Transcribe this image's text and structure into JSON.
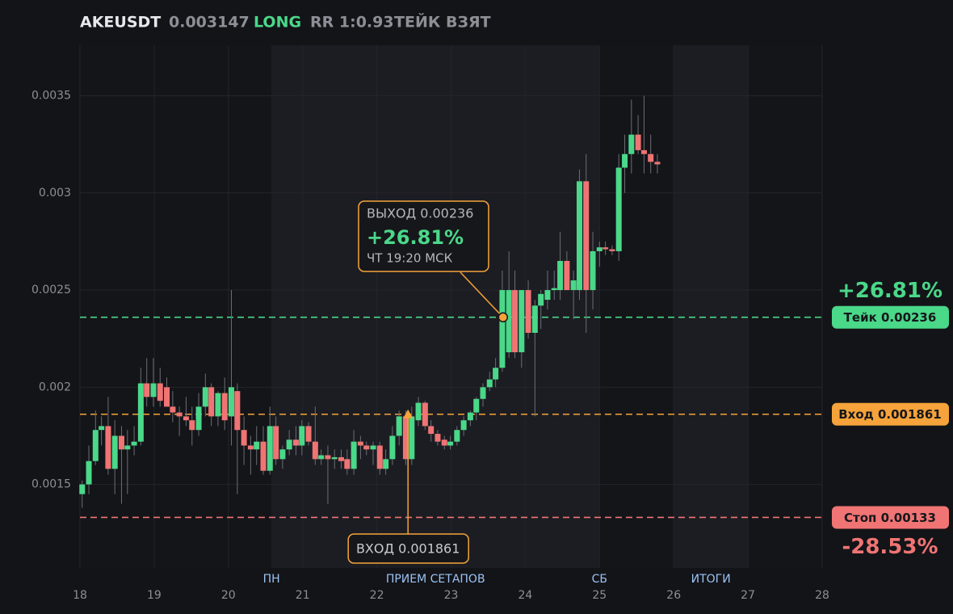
{
  "chart_data": {
    "type": "candlestick",
    "header": {
      "symbol": "AKEUSDT",
      "price": "0.003147",
      "side": "LONG",
      "rr": "RR 1:0.93",
      "status": "ТЕЙК ВЗЯТ"
    },
    "xlim": [
      18,
      28
    ],
    "xticks": [
      18,
      19,
      20,
      21,
      22,
      23,
      24,
      25,
      26,
      27,
      28
    ],
    "ylim": [
      0.00107,
      0.00376
    ],
    "yticks": [
      0.0015,
      0.002,
      0.0025,
      0.003,
      0.0035
    ],
    "grid": true,
    "up_color": "#4ad889",
    "down_color": "#f07474",
    "x": [
      18.03,
      18.12,
      18.21,
      18.29,
      18.38,
      18.47,
      18.56,
      18.64,
      18.73,
      18.82,
      18.9,
      18.99,
      19.08,
      19.17,
      19.25,
      19.34,
      19.43,
      19.51,
      19.6,
      19.69,
      19.77,
      19.86,
      19.95,
      20.04,
      20.12,
      20.21,
      20.3,
      20.38,
      20.47,
      20.56,
      20.64,
      20.73,
      20.82,
      20.91,
      20.99,
      21.08,
      21.17,
      21.25,
      21.34,
      21.43,
      21.52,
      21.6,
      21.69,
      21.78,
      21.86,
      21.95,
      22.04,
      22.12,
      22.21,
      22.3,
      22.39,
      22.47,
      22.56,
      22.65,
      22.73,
      22.82,
      22.91,
      22.99,
      23.08,
      23.17,
      23.26,
      23.34,
      23.43,
      23.52,
      23.6,
      23.69,
      23.78,
      23.86,
      23.95,
      24.04,
      24.13,
      24.21,
      24.3,
      24.39,
      24.47,
      24.56,
      24.65,
      24.73,
      24.82,
      24.91,
      25.0,
      25.08,
      25.17,
      25.26,
      25.34,
      25.43,
      25.52,
      25.6,
      25.69,
      25.78
    ],
    "open": [
      0.00145,
      0.0015,
      0.00162,
      0.00178,
      0.0018,
      0.00158,
      0.00175,
      0.00168,
      0.0017,
      0.00172,
      0.00202,
      0.00195,
      0.00202,
      0.002,
      0.0019,
      0.00187,
      0.00185,
      0.00183,
      0.00178,
      0.0019,
      0.002,
      0.00185,
      0.00197,
      0.00185,
      0.00198,
      0.00178,
      0.0017,
      0.00168,
      0.00172,
      0.00157,
      0.0018,
      0.00163,
      0.00168,
      0.00173,
      0.0017,
      0.0018,
      0.00172,
      0.00163,
      0.00165,
      0.00163,
      0.00164,
      0.00163,
      0.00158,
      0.00172,
      0.0017,
      0.00168,
      0.0017,
      0.00158,
      0.00163,
      0.00175,
      0.00185,
      0.00163,
      0.00183,
      0.00192,
      0.0018,
      0.00176,
      0.00173,
      0.0017,
      0.00172,
      0.00178,
      0.00183,
      0.00187,
      0.00194,
      0.002,
      0.00204,
      0.0021,
      0.00218,
      0.0025,
      0.00218,
      0.0025,
      0.00228,
      0.00242,
      0.00245,
      0.0025,
      0.0025,
      0.00265,
      0.0025,
      0.0025,
      0.00306,
      0.0025,
      0.0027,
      0.00272,
      0.00271,
      0.0027,
      0.00313,
      0.0032,
      0.0033,
      0.00322,
      0.0032,
      0.00316
    ],
    "high": [
      0.00152,
      0.0017,
      0.00188,
      0.00185,
      0.00195,
      0.00183,
      0.0018,
      0.00178,
      0.0018,
      0.0021,
      0.00215,
      0.00215,
      0.0021,
      0.00205,
      0.00198,
      0.0019,
      0.00195,
      0.0019,
      0.00197,
      0.00207,
      0.00202,
      0.00198,
      0.00205,
      0.0025,
      0.00202,
      0.00185,
      0.00175,
      0.0018,
      0.0018,
      0.0019,
      0.00185,
      0.0017,
      0.00178,
      0.0018,
      0.00183,
      0.00182,
      0.0019,
      0.00168,
      0.0017,
      0.00168,
      0.00168,
      0.00168,
      0.00178,
      0.00175,
      0.00172,
      0.00172,
      0.00172,
      0.00168,
      0.0018,
      0.00188,
      0.00188,
      0.0019,
      0.00195,
      0.00193,
      0.00183,
      0.00178,
      0.00175,
      0.00175,
      0.0018,
      0.00185,
      0.00188,
      0.00195,
      0.00202,
      0.00208,
      0.00215,
      0.0026,
      0.0027,
      0.0026,
      0.0025,
      0.00255,
      0.00245,
      0.0025,
      0.0026,
      0.0026,
      0.0028,
      0.0027,
      0.0026,
      0.00312,
      0.0032,
      0.0028,
      0.00275,
      0.00275,
      0.00273,
      0.0032,
      0.0033,
      0.00348,
      0.0034,
      0.0035,
      0.0033,
      0.0032
    ],
    "low": [
      0.00138,
      0.00145,
      0.0016,
      0.0017,
      0.00155,
      0.00145,
      0.0014,
      0.00145,
      0.00165,
      0.0017,
      0.0019,
      0.0019,
      0.0019,
      0.0019,
      0.00182,
      0.00175,
      0.0018,
      0.0017,
      0.00175,
      0.00185,
      0.0018,
      0.0018,
      0.00178,
      0.0017,
      0.00145,
      0.0016,
      0.00155,
      0.0016,
      0.00155,
      0.00155,
      0.0016,
      0.00158,
      0.00165,
      0.00165,
      0.00165,
      0.0017,
      0.0016,
      0.0016,
      0.0014,
      0.00158,
      0.00158,
      0.00155,
      0.00155,
      0.00163,
      0.00165,
      0.0016,
      0.00155,
      0.00155,
      0.0016,
      0.0017,
      0.0016,
      0.0016,
      0.0018,
      0.00178,
      0.00172,
      0.0017,
      0.00168,
      0.00168,
      0.0017,
      0.00175,
      0.0018,
      0.00183,
      0.0019,
      0.00198,
      0.002,
      0.00208,
      0.00215,
      0.00215,
      0.0021,
      0.00225,
      0.00185,
      0.0023,
      0.0024,
      0.00245,
      0.00245,
      0.0025,
      0.00235,
      0.00245,
      0.00228,
      0.0024,
      0.00262,
      0.00268,
      0.00268,
      0.00265,
      0.003,
      0.0031,
      0.0032,
      0.0031,
      0.0031,
      0.0031
    ],
    "close": [
      0.0015,
      0.00162,
      0.00178,
      0.0018,
      0.00158,
      0.00175,
      0.00168,
      0.0017,
      0.00172,
      0.00202,
      0.00195,
      0.00202,
      0.00193,
      0.0019,
      0.00187,
      0.00185,
      0.00183,
      0.00178,
      0.0019,
      0.002,
      0.00185,
      0.00197,
      0.00183,
      0.002,
      0.00178,
      0.0017,
      0.00168,
      0.00172,
      0.00157,
      0.0018,
      0.00163,
      0.00168,
      0.00173,
      0.0017,
      0.0018,
      0.00172,
      0.00163,
      0.00165,
      0.00163,
      0.00164,
      0.00162,
      0.00158,
      0.00172,
      0.0017,
      0.00168,
      0.0017,
      0.00158,
      0.00163,
      0.00175,
      0.00185,
      0.00163,
      0.00185,
      0.00192,
      0.0018,
      0.00176,
      0.00172,
      0.0017,
      0.00172,
      0.00178,
      0.00183,
      0.00187,
      0.00194,
      0.002,
      0.00204,
      0.0021,
      0.0025,
      0.0025,
      0.00218,
      0.0025,
      0.00228,
      0.00242,
      0.00248,
      0.0025,
      0.00251,
      0.00265,
      0.0025,
      0.00255,
      0.00306,
      0.0025,
      0.0027,
      0.00272,
      0.00271,
      0.0027,
      0.00313,
      0.0032,
      0.0033,
      0.00322,
      0.0032,
      0.00316,
      0.003147
    ],
    "zones": [
      {
        "start": 20.58,
        "end": 25
      },
      {
        "start": 26,
        "end": 27
      }
    ],
    "zone_labels": [
      {
        "text": "ПН",
        "x": 20.58
      },
      {
        "text": "ПРИЕМ СЕТАПОВ",
        "x": 22.79
      },
      {
        "text": "СБ",
        "x": 25
      },
      {
        "text": "ИТОГИ",
        "x": 26.5
      }
    ],
    "levels": [
      {
        "value": 0.00236,
        "label": "Тейк 0.00236",
        "color": "#4ad889",
        "pnl": "+26.81%"
      },
      {
        "value": 0.001861,
        "label": "Вход 0.001861",
        "color": "#f5a33a"
      },
      {
        "value": 0.00133,
        "label": "Стоп 0.00133",
        "color": "#f07474",
        "pnl": "-28.53%"
      }
    ],
    "exit": {
      "x": 23.7,
      "y": 0.00236,
      "lines": [
        "ВЫХОД 0.00236",
        "+26.81%",
        "ЧТ 19:20 МСК"
      ]
    },
    "entry": {
      "x": 22.42,
      "y": 0.001861,
      "text": "ВХОД 0.001861"
    }
  }
}
